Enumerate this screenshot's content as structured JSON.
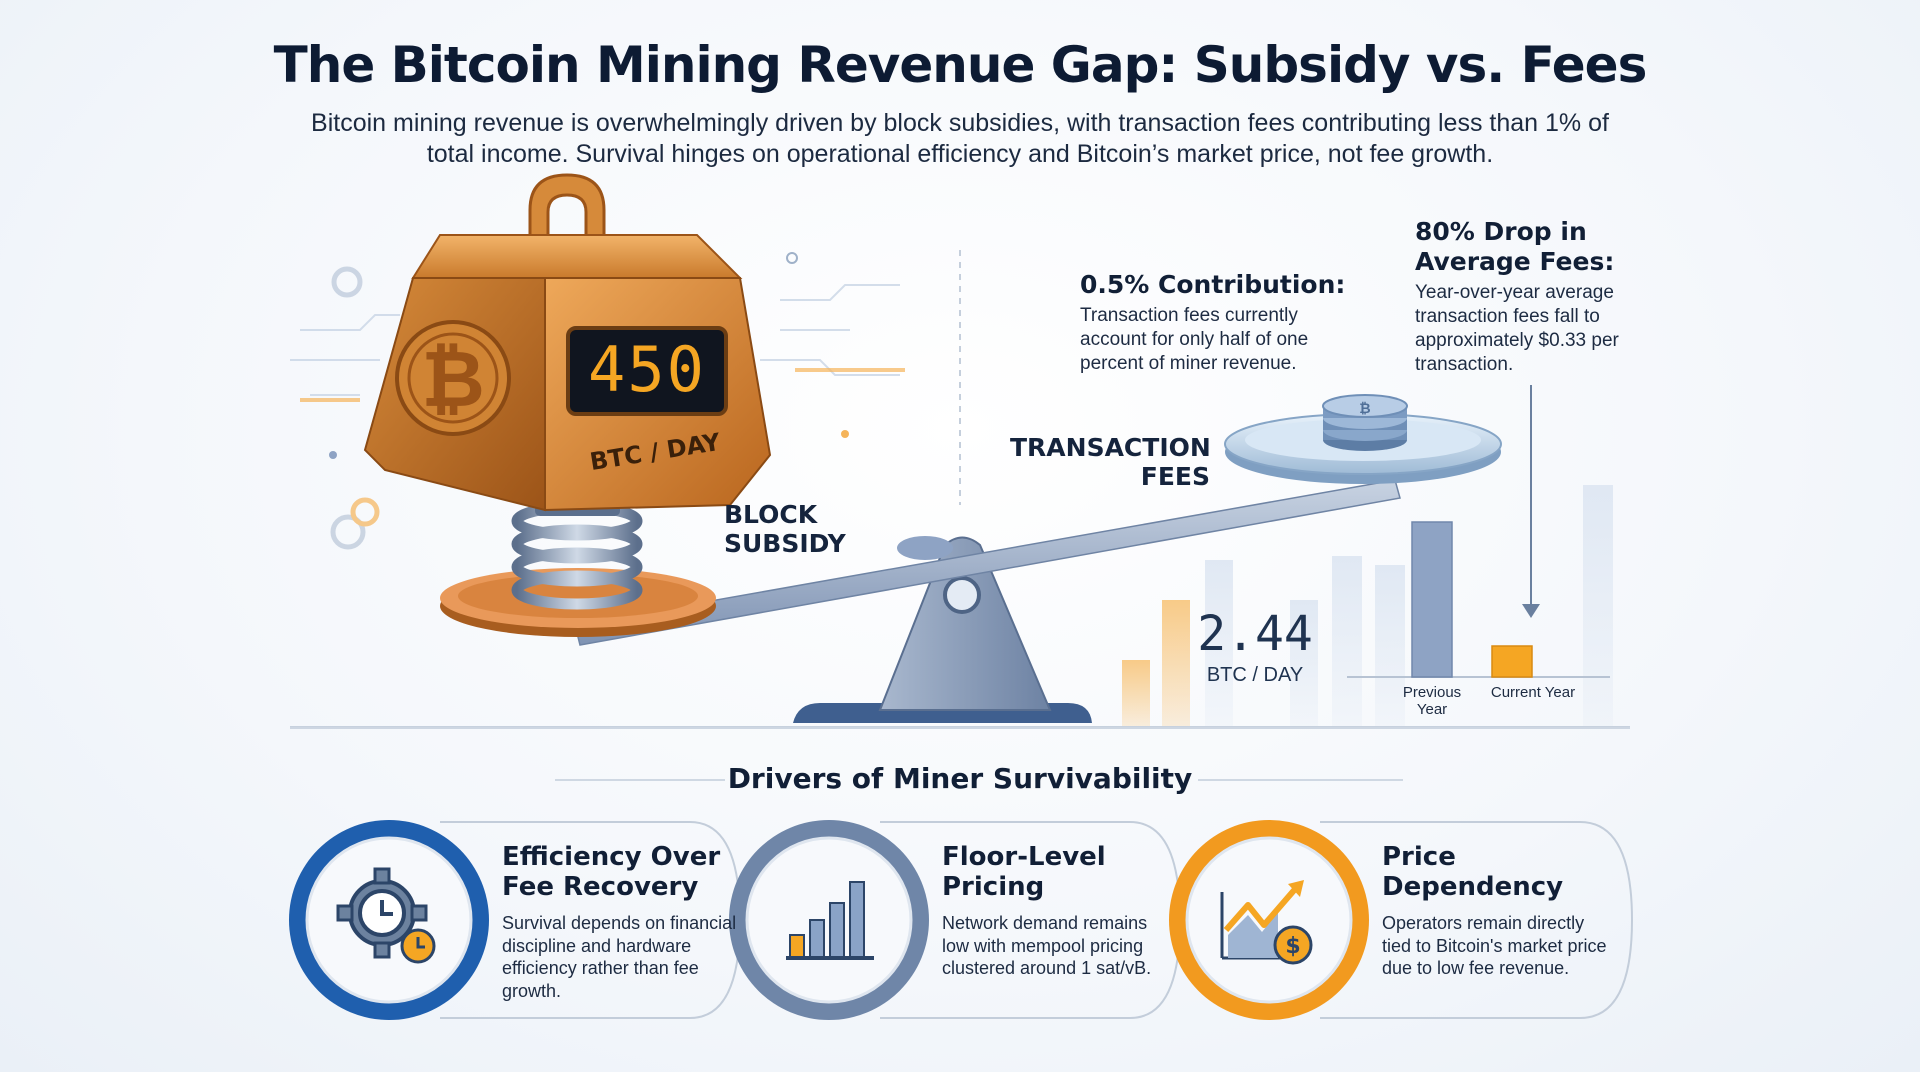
{
  "title": "The Bitcoin Mining Revenue Gap: Subsidy vs. Fees",
  "subtitle": "Bitcoin mining revenue is overwhelmingly driven by block subsidies, with transaction fees contributing less than 1% of total income. Survival hinges on operational efficiency and Bitcoin’s market price, not fee growth.",
  "scale": {
    "weight_display": "450",
    "weight_unit": "BTC / DAY",
    "subsidy_label_1": "BLOCK",
    "subsidy_label_2": "SUBSIDY",
    "fees_label_1": "TRANSACTION",
    "fees_label_2": "FEES",
    "fee_display": "2.44",
    "fee_unit": "BTC / DAY"
  },
  "notes": {
    "contribution": {
      "heading": "0.5% Contribution:",
      "body": "Transaction fees currently account for only half of one percent of miner revenue."
    },
    "drop": {
      "heading_1": "80% Drop in",
      "heading_2": "Average Fees:",
      "body": "Year-over-year average transaction fees fall to approximately $0.33 per transaction."
    }
  },
  "fee_chart": {
    "categories": [
      "Previous Year",
      "Current Year"
    ],
    "category_lines": [
      [
        "Previous",
        "Year"
      ],
      [
        "Current Year"
      ]
    ],
    "values": [
      1,
      0.2
    ],
    "colors": [
      "#8ea3c4",
      "#f5a623"
    ]
  },
  "drivers_heading": "Drivers of Miner Survivability",
  "drivers": [
    {
      "title_1": "Efficiency Over",
      "title_2": "Fee Recovery",
      "body": "Survival depends on financial discipline and hardware efficiency rather than fee growth.",
      "icon": "gear-clock-icon",
      "ring_color": "#1f5fae"
    },
    {
      "title_1": "Floor-Level",
      "title_2": "Pricing",
      "body": "Network demand remains low with mempool pricing clustered around 1 sat/vB.",
      "icon": "bar-chart-icon",
      "ring_color": "#6f86a8"
    },
    {
      "title_1": "Price",
      "title_2": "Dependency",
      "body": "Operators remain directly tied to Bitcoin's market price due to low fee revenue.",
      "icon": "price-chart-dollar-icon",
      "ring_color": "#f29a1f"
    }
  ],
  "colors": {
    "bronze": "#c97a2c",
    "gold": "#f5a623",
    "navy": "#1f5fae",
    "steel": "#6f86a8"
  }
}
